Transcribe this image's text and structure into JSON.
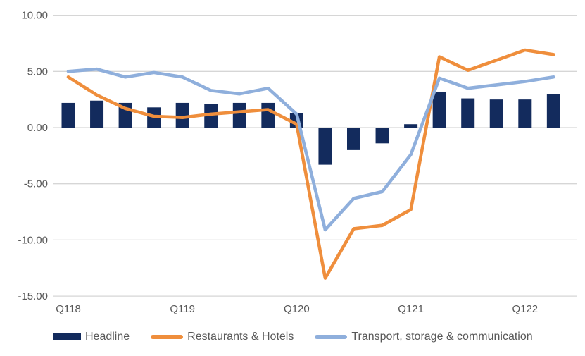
{
  "chart_data": {
    "type": "combo-bar-line",
    "title": "",
    "xlabel": "",
    "ylabel": "",
    "n_points": 18,
    "ylim": [
      -15,
      10
    ],
    "grid": true,
    "legend_position": "bottom",
    "y_ticks": [
      {
        "label": "10.00",
        "value": 10
      },
      {
        "label": "5.00",
        "value": 5
      },
      {
        "label": "0.00",
        "value": 0
      },
      {
        "label": "-5.00",
        "value": -5
      },
      {
        "label": "-10.00",
        "value": -10
      },
      {
        "label": "-15.00",
        "value": -15
      }
    ],
    "x_tick_labels": [
      {
        "label": "Q118",
        "index": 0
      },
      {
        "label": "Q119",
        "index": 4
      },
      {
        "label": "Q120",
        "index": 8
      },
      {
        "label": "Q121",
        "index": 12
      },
      {
        "label": "Q122",
        "index": 16
      }
    ],
    "bar_series": {
      "name": "Headline",
      "color": "#132B5D",
      "values": [
        2.2,
        2.4,
        2.2,
        1.8,
        2.2,
        2.1,
        2.2,
        2.2,
        1.3,
        -3.3,
        -2.0,
        -1.4,
        0.3,
        3.2,
        2.6,
        2.5,
        2.5,
        3.0
      ]
    },
    "line_series": [
      {
        "name": "Restaurants & Hotels",
        "color": "#EF8E3C",
        "values": [
          4.5,
          2.9,
          1.7,
          1.0,
          0.9,
          1.2,
          1.4,
          1.6,
          0.3,
          -13.4,
          -9.0,
          -8.7,
          -7.3,
          6.3,
          5.1,
          6.0,
          6.9,
          6.5
        ]
      },
      {
        "name": "Transport, storage & communication",
        "color": "#8FAFDC",
        "values": [
          5.0,
          5.2,
          4.5,
          4.9,
          4.5,
          3.3,
          3.0,
          3.5,
          1.2,
          -9.1,
          -6.3,
          -5.7,
          -2.4,
          4.4,
          3.5,
          3.8,
          4.1,
          4.5
        ]
      }
    ],
    "colors": {
      "gridline": "#D6D6D6",
      "axis_text": "#595959",
      "background": "#FFFFFF"
    }
  }
}
